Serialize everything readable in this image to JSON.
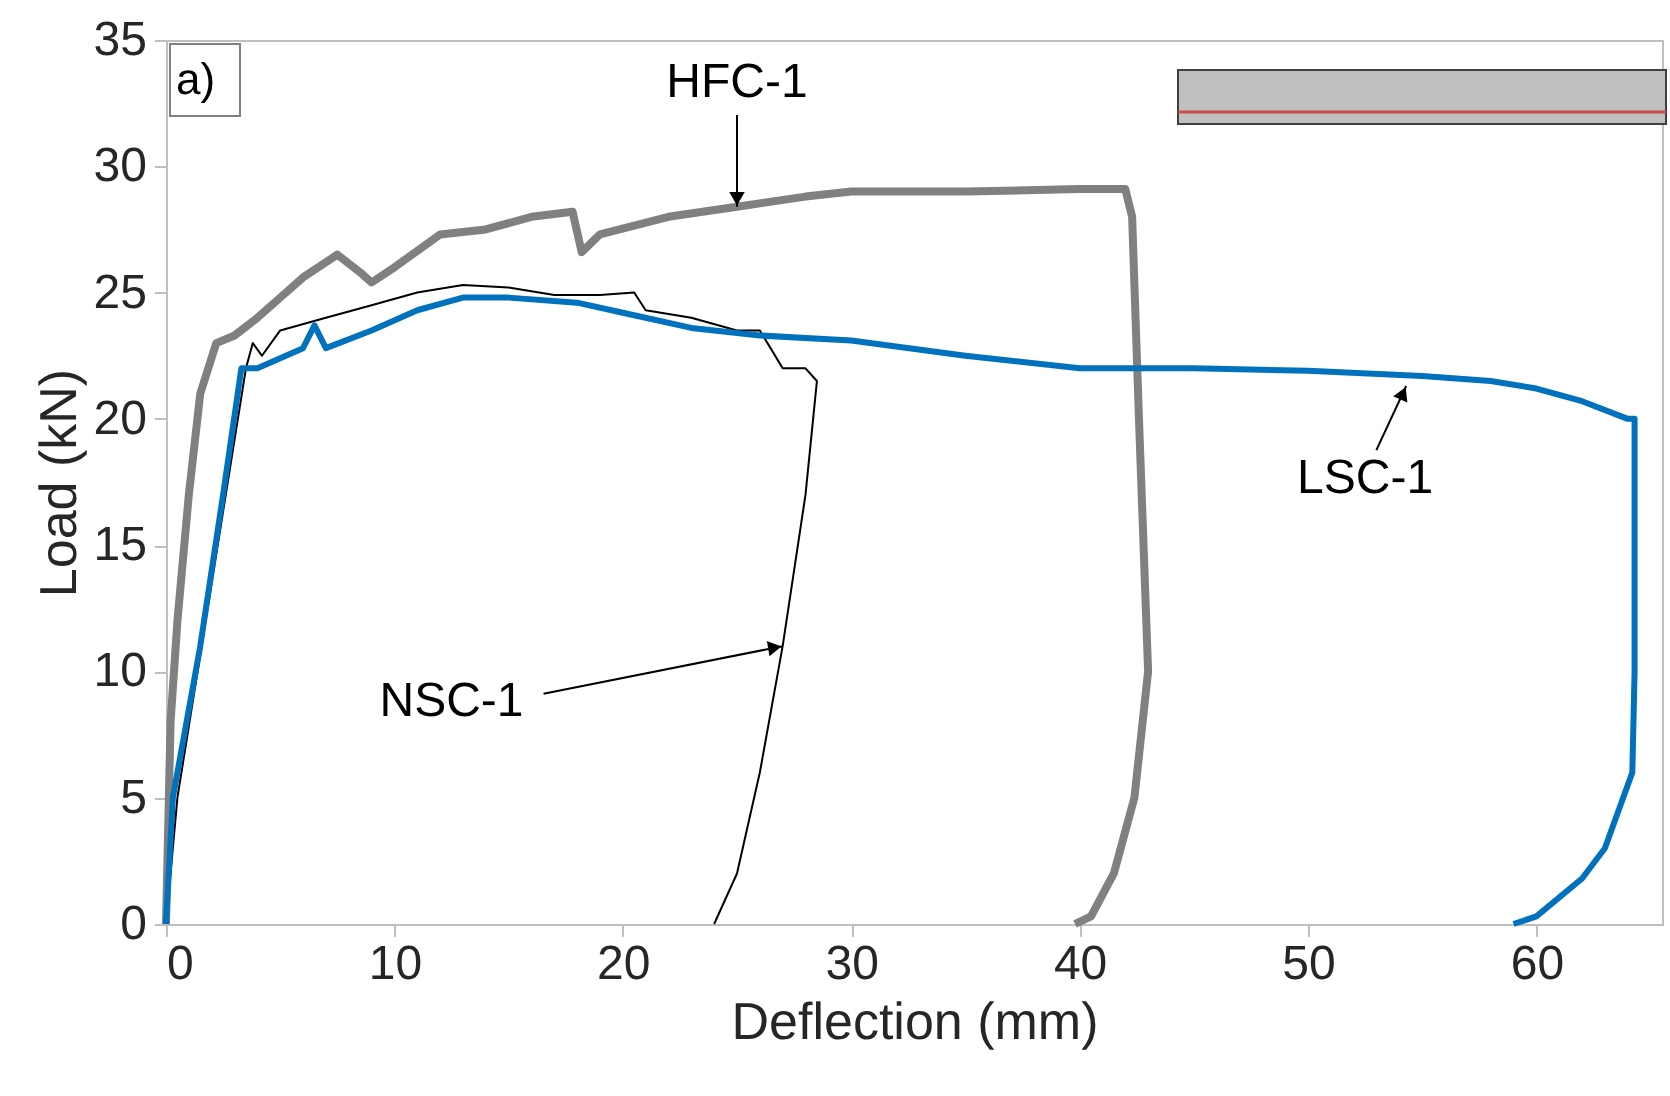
{
  "chart_data": {
    "type": "line",
    "xlabel": "Deflection (mm)",
    "ylabel": "Load (kN)",
    "xlim": [
      0,
      65.5
    ],
    "ylim": [
      0,
      35
    ],
    "xticks": [
      0,
      10,
      20,
      30,
      40,
      50,
      60
    ],
    "yticks": [
      0,
      5,
      10,
      15,
      20,
      25,
      30,
      35
    ],
    "annotations": [
      "a)"
    ],
    "series": [
      {
        "name": "HFC-1",
        "color": "#808080",
        "x": [
          0,
          0.2,
          0.5,
          1,
          1.5,
          2.2,
          3,
          4,
          5,
          6,
          7.5,
          8.5,
          9,
          10,
          12,
          14,
          16,
          17.8,
          18.2,
          19,
          22,
          25,
          28,
          30,
          35,
          40,
          42,
          42.3,
          42.6,
          43,
          42.4,
          41.5,
          40.5,
          39.8
        ],
        "values": [
          0,
          8,
          12,
          17,
          21,
          23,
          23.3,
          24,
          24.8,
          25.6,
          26.5,
          25.8,
          25.4,
          26,
          27.3,
          27.5,
          28,
          28.2,
          26.6,
          27.3,
          28,
          28.4,
          28.8,
          29,
          29,
          29.1,
          29.1,
          28,
          20,
          10,
          5,
          2,
          0.3,
          0
        ]
      },
      {
        "name": "NSC-1",
        "color": "#000000",
        "x": [
          0,
          0.5,
          3.5,
          3.8,
          4.2,
          5,
          7,
          9,
          11,
          13,
          15,
          17,
          19,
          20.5,
          21,
          23,
          25,
          26,
          27,
          28,
          28.5,
          28,
          27,
          26,
          25,
          24
        ],
        "values": [
          0,
          5,
          22,
          23,
          22.5,
          23.5,
          24,
          24.5,
          25,
          25.3,
          25.2,
          24.9,
          24.9,
          25,
          24.3,
          24,
          23.5,
          23.5,
          22,
          22,
          21.5,
          17,
          11,
          6,
          2,
          0
        ]
      },
      {
        "name": "LSC-1",
        "color": "#0072bd",
        "x": [
          0,
          0.3,
          1.5,
          2.5,
          3.3,
          4,
          6,
          6.5,
          7,
          9,
          11,
          13,
          15,
          18,
          20,
          23,
          26,
          30,
          35,
          40,
          45,
          50,
          55,
          58,
          60,
          62,
          64,
          64.3,
          64.3,
          64.2,
          63,
          62,
          60,
          59
        ],
        "values": [
          0,
          5,
          11,
          17,
          22,
          22,
          22.8,
          23.7,
          22.8,
          23.5,
          24.3,
          24.8,
          24.8,
          24.6,
          24.2,
          23.6,
          23.3,
          23.1,
          22.5,
          22,
          22,
          21.9,
          21.7,
          21.5,
          21.2,
          20.7,
          20,
          20,
          10,
          6,
          3,
          1.8,
          0.3,
          0
        ]
      }
    ]
  }
}
